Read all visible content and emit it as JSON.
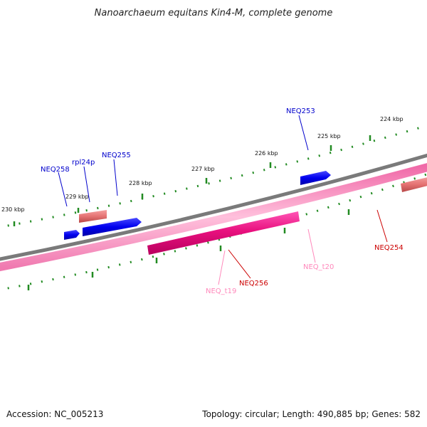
{
  "title": "Nanoarchaeum equitans Kin4-M, complete genome",
  "footer": {
    "accession": "Accession: NC_005213",
    "topology": "Topology: circular; Length: 490,885 bp; Genes: 582"
  },
  "scale_labels": [
    "224 kbp",
    "225 kbp",
    "226 kbp",
    "227 kbp",
    "228 kbp",
    "229 kbp",
    "230 kbp"
  ],
  "genes": [
    {
      "name": "NEQ253",
      "color": "#0000cc"
    },
    {
      "name": "rpl24p",
      "color": "#0000cc"
    },
    {
      "name": "NEQ255",
      "color": "#0000cc"
    },
    {
      "name": "NEQ258",
      "color": "#0000cc"
    },
    {
      "name": "NEQ256",
      "color": "#cc0000"
    },
    {
      "name": "NEQ254",
      "color": "#cc0000"
    },
    {
      "name": "NEQ_t19",
      "color": "#ff88bb"
    },
    {
      "name": "NEQ_t20",
      "color": "#ff88bb"
    }
  ],
  "colors": {
    "backbone": "#808080",
    "forward_gene": "#0000ff",
    "reverse_gene": "#ee1188",
    "rrna": "#ee7777",
    "trna_track": "#ff99cc",
    "tick": "#228b22"
  }
}
